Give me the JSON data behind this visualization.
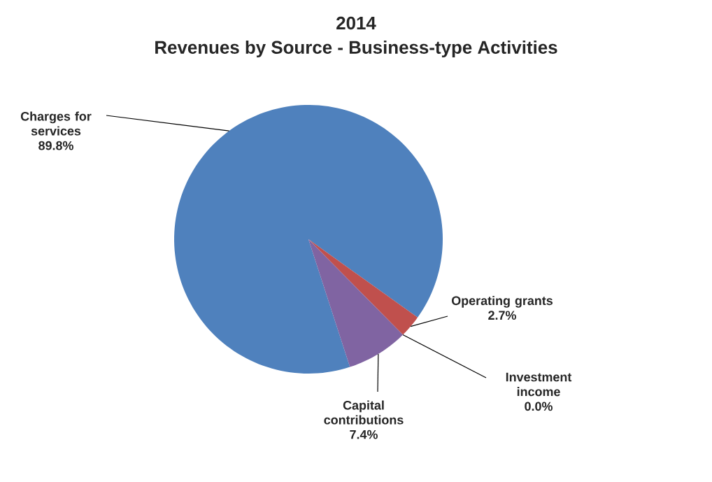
{
  "chart_data": {
    "type": "pie",
    "title": "2014",
    "subtitle": "Revenues by Source - Business-type Activities",
    "categories": [
      "Charges for services",
      "Operating grants",
      "Investment income",
      "Capital contributions"
    ],
    "values": [
      89.8,
      2.7,
      0.0,
      7.4
    ],
    "colors": [
      "#4f81bd",
      "#c0504d",
      "#9bbb59",
      "#8064a2"
    ],
    "value_labels": [
      "89.8%",
      "2.7%",
      "0.0%",
      "7.4%"
    ]
  }
}
